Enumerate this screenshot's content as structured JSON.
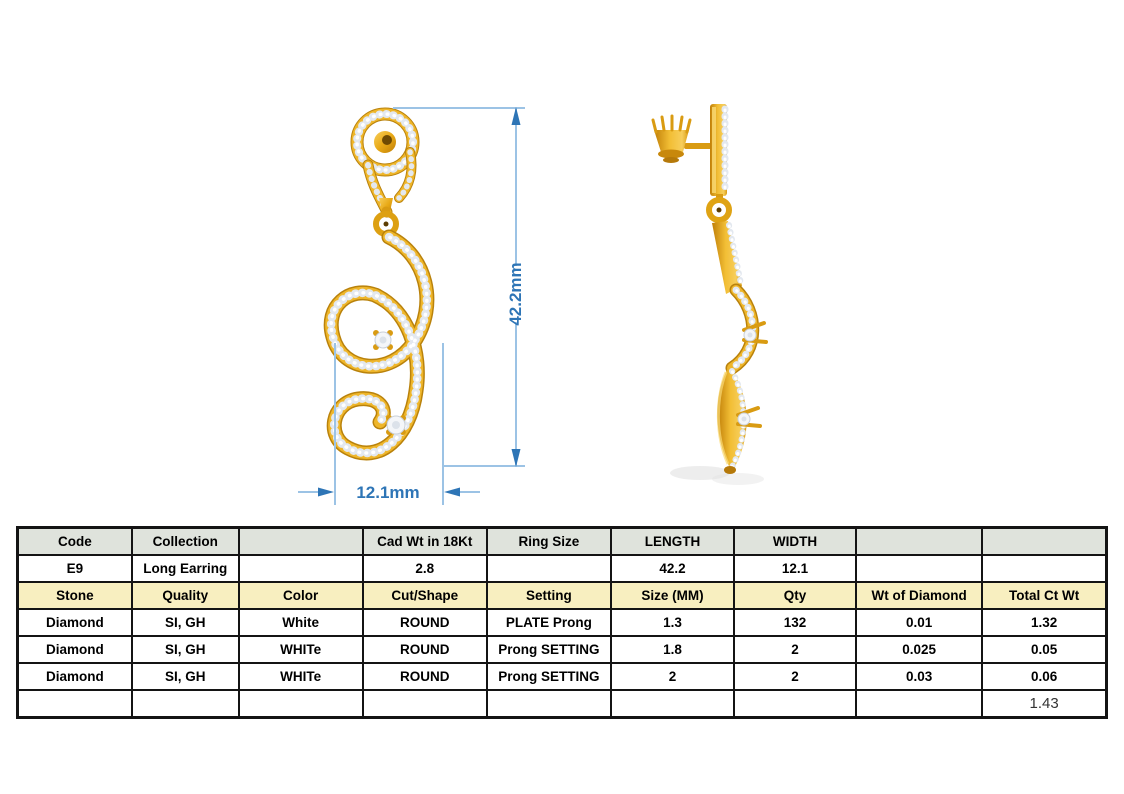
{
  "annotations": {
    "height_label": "42.2mm",
    "width_label": "12.1mm"
  },
  "colors": {
    "dim_line": "#9CC3E5",
    "dim_accent": "#2E75B6",
    "gold": "#E8A916",
    "gold_dark": "#B9820C",
    "gold_light": "#F7CE5B",
    "diamond": "#EFF2F6",
    "header_row_bg": "#DFE3DC",
    "stone_header_bg": "#F8EFC0",
    "table_border": "#141414"
  },
  "table": {
    "rows": [
      {
        "style": "head",
        "cells": [
          "Code",
          "Collection",
          "",
          "Cad Wt in 18Kt",
          "Ring Size",
          "LENGTH",
          "WIDTH",
          "",
          ""
        ]
      },
      {
        "style": "data",
        "cells": [
          "E9",
          "Long Earring",
          "",
          "2.8",
          "",
          "42.2",
          "12.1",
          "",
          ""
        ]
      },
      {
        "style": "stone-head",
        "cells": [
          "Stone",
          "Quality",
          "Color",
          "Cut/Shape",
          "Setting",
          "Size (MM)",
          "Qty",
          "Wt of Diamond",
          "Total Ct Wt"
        ]
      },
      {
        "style": "data",
        "cells": [
          "Diamond",
          "SI, GH",
          "White",
          "ROUND",
          "PLATE Prong",
          "1.3",
          "132",
          "0.01",
          "1.32"
        ]
      },
      {
        "style": "data",
        "cells": [
          "Diamond",
          "SI, GH",
          "WHITe",
          "ROUND",
          "Prong SETTING",
          "1.8",
          "2",
          "0.025",
          "0.05"
        ]
      },
      {
        "style": "data",
        "cells": [
          "Diamond",
          "SI, GH",
          "WHITe",
          "ROUND",
          "Prong SETTING",
          "2",
          "2",
          "0.03",
          "0.06"
        ]
      },
      {
        "style": "total",
        "cells": [
          "",
          "",
          "",
          "",
          "",
          "",
          "",
          "",
          "1.43"
        ]
      }
    ]
  }
}
